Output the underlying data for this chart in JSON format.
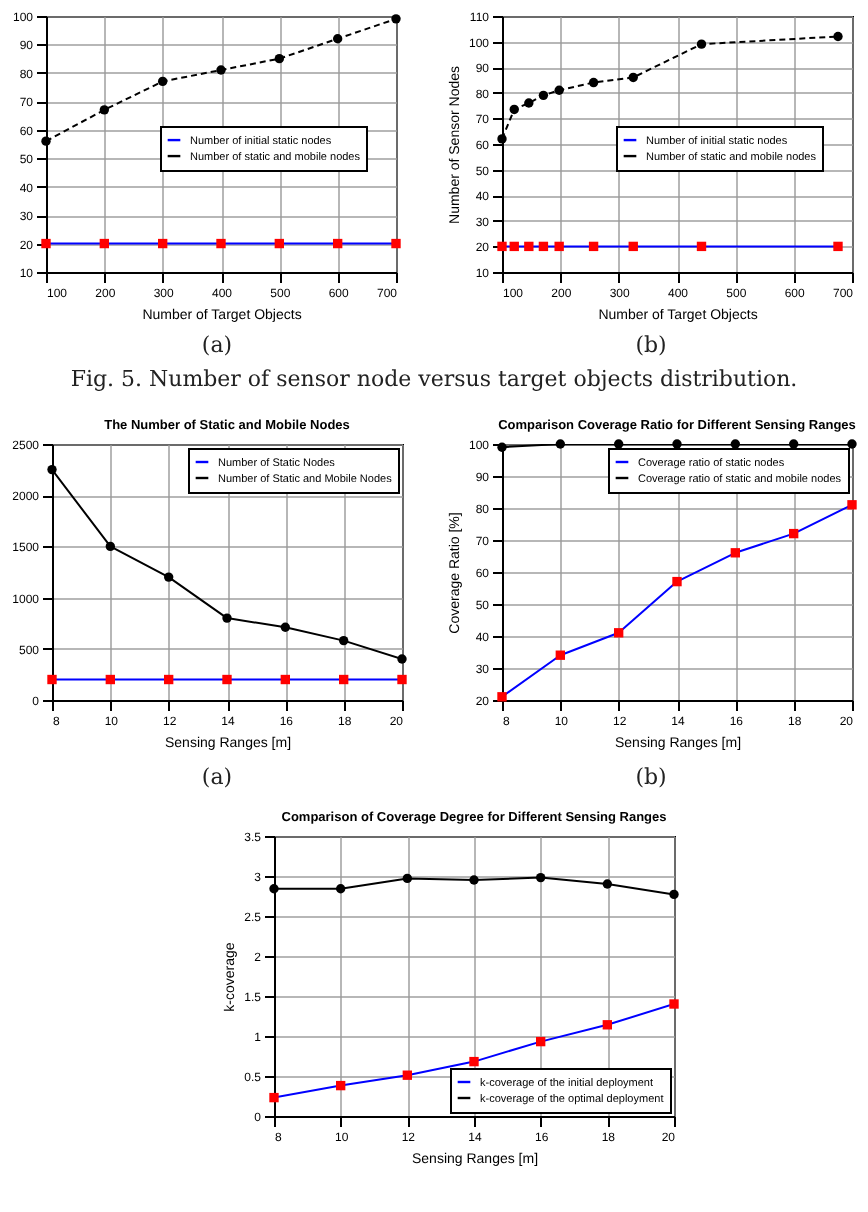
{
  "chart_data": [
    {
      "type": "line",
      "xlabel": "Number of Target Objects",
      "x": [
        100,
        200,
        300,
        400,
        500,
        600,
        700
      ],
      "xlim": [
        100,
        700
      ],
      "xticks": [
        100,
        200,
        300,
        400,
        500,
        600,
        700
      ],
      "ylim": [
        10,
        100
      ],
      "yticks": [
        10,
        20,
        30,
        40,
        50,
        60,
        70,
        80,
        90,
        100
      ],
      "grid": true,
      "legend": "right",
      "annotations": [
        "(a)",
        "Fig. 5. Number of sensor node versus target objects distribution."
      ],
      "series": [
        {
          "name": "Number of initial static nodes",
          "color": "#0000ff",
          "colors": [
            "#ff0000",
            "#ff0000",
            "#ff0000",
            "#ff0000",
            "#ff0000",
            "#ff0000",
            "#ff0000"
          ],
          "marker": "square",
          "line_style": "solid",
          "values": [
            20,
            20,
            20,
            20,
            20,
            20,
            20
          ]
        },
        {
          "name": "Number of static and mobile nodes",
          "color": "#000000",
          "marker": "circle",
          "line_style": "dashed",
          "values": [
            56,
            67,
            77,
            81,
            85,
            92,
            99
          ]
        }
      ]
    },
    {
      "type": "line",
      "xlabel": "Number of Target Objects",
      "ylabel": "Number of Sensor Nodes",
      "x": [
        100,
        121,
        146,
        171,
        198,
        257,
        325,
        442,
        676
      ],
      "xlim": [
        100,
        700
      ],
      "xticks": [
        100,
        200,
        300,
        400,
        500,
        600,
        700
      ],
      "ylim": [
        10,
        110
      ],
      "yticks": [
        10,
        20,
        30,
        40,
        50,
        60,
        70,
        80,
        90,
        100,
        110
      ],
      "grid": true,
      "legend": "right",
      "annotations": [
        "(b)"
      ],
      "series": [
        {
          "name": "Number of initial static nodes",
          "color": "#0000ff",
          "colors": [
            "#ff0000",
            "#ff0000",
            "#ff0000",
            "#ff0000",
            "#ff0000",
            "#ff0000",
            "#ff0000",
            "#ff0000",
            "#ff0000"
          ],
          "marker": "square",
          "line_style": "solid",
          "values": [
            20,
            20,
            20,
            20,
            20,
            20,
            20,
            20,
            20
          ]
        },
        {
          "name": "Number of static and mobile nodes",
          "color": "#000000",
          "marker": "circle",
          "line_style": "dashed",
          "values": [
            62,
            73.5,
            76,
            79,
            81,
            84,
            86,
            99,
            102
          ]
        }
      ]
    },
    {
      "type": "line",
      "title": "The Number of Static and Mobile Nodes",
      "xlabel": "Sensing Ranges [m]",
      "x": [
        8,
        10,
        12,
        14,
        16,
        18,
        20
      ],
      "xlim": [
        8,
        20
      ],
      "xticks": [
        8,
        10,
        12,
        14,
        16,
        18,
        20
      ],
      "ylim": [
        0,
        2500
      ],
      "yticks": [
        0,
        500,
        1000,
        1500,
        2000,
        2500
      ],
      "grid": true,
      "legend": "top right",
      "annotations": [
        "(a)"
      ],
      "series": [
        {
          "name": "Number of Static Nodes",
          "color": "#0000ff",
          "colors": [
            "#ff0000",
            "#ff0000",
            "#ff0000",
            "#ff0000",
            "#ff0000",
            "#ff0000",
            "#ff0000"
          ],
          "marker": "square",
          "line_style": "solid",
          "values": [
            200,
            200,
            200,
            200,
            200,
            200,
            200
          ]
        },
        {
          "name": "Number of Static and Mobile Nodes",
          "color": "#000000",
          "marker": "circle",
          "line_style": "solid",
          "values": [
            2250,
            1500,
            1200,
            800,
            710,
            580,
            400
          ]
        }
      ]
    },
    {
      "type": "line",
      "title": "Comparison Coverage Ratio for Different Sensing Ranges",
      "xlabel": "Sensing Ranges [m]",
      "ylabel": "Coverage Ratio [%]",
      "x": [
        8,
        10,
        12,
        14,
        16,
        18,
        20
      ],
      "xlim": [
        8,
        20
      ],
      "xticks": [
        8,
        10,
        12,
        14,
        16,
        18,
        20
      ],
      "ylim": [
        20,
        100
      ],
      "yticks": [
        20,
        30,
        40,
        50,
        60,
        70,
        80,
        90,
        100
      ],
      "grid": true,
      "legend": "top right",
      "annotations": [
        "(b)"
      ],
      "series": [
        {
          "name": "Coverage ratio of static nodes",
          "color": "#0000ff",
          "colors": [
            "#ff0000",
            "#ff0000",
            "#ff0000",
            "#ff0000",
            "#ff0000",
            "#ff0000",
            "#ff0000"
          ],
          "marker": "square",
          "line_style": "solid",
          "values": [
            21,
            34,
            41,
            57,
            66,
            72,
            81
          ]
        },
        {
          "name": "Coverage ratio of static and mobile nodes",
          "color": "#000000",
          "marker": "circle",
          "line_style": "solid",
          "values": [
            99,
            100,
            100,
            100,
            100,
            100,
            100
          ]
        }
      ]
    },
    {
      "type": "line",
      "title": "Comparison of Coverage Degree for Different Sensing Ranges",
      "xlabel": "Sensing Ranges [m]",
      "ylabel": "k-coverage",
      "x": [
        8,
        10,
        12,
        14,
        16,
        18,
        20
      ],
      "xlim": [
        8,
        20
      ],
      "xticks": [
        8,
        10,
        12,
        14,
        16,
        18,
        20
      ],
      "ylim": [
        0,
        3.5
      ],
      "yticks": [
        0,
        0.5,
        1,
        1.5,
        2,
        2.5,
        3,
        3.5
      ],
      "grid": true,
      "legend": "bottom right",
      "series": [
        {
          "name": "k-coverage of the initial deployment",
          "color": "#0000ff",
          "colors": [
            "#ff0000",
            "#ff0000",
            "#ff0000",
            "#ff0000",
            "#ff0000",
            "#ff0000",
            "#ff0000"
          ],
          "marker": "square",
          "line_style": "solid",
          "values": [
            0.23,
            0.38,
            0.51,
            0.68,
            0.93,
            1.14,
            1.4
          ]
        },
        {
          "name": "k-coverage of the optimal deployment",
          "color": "#000000",
          "marker": "circle",
          "line_style": "solid",
          "values": [
            2.84,
            2.84,
            2.97,
            2.95,
            2.98,
            2.9,
            2.77
          ]
        }
      ]
    }
  ]
}
